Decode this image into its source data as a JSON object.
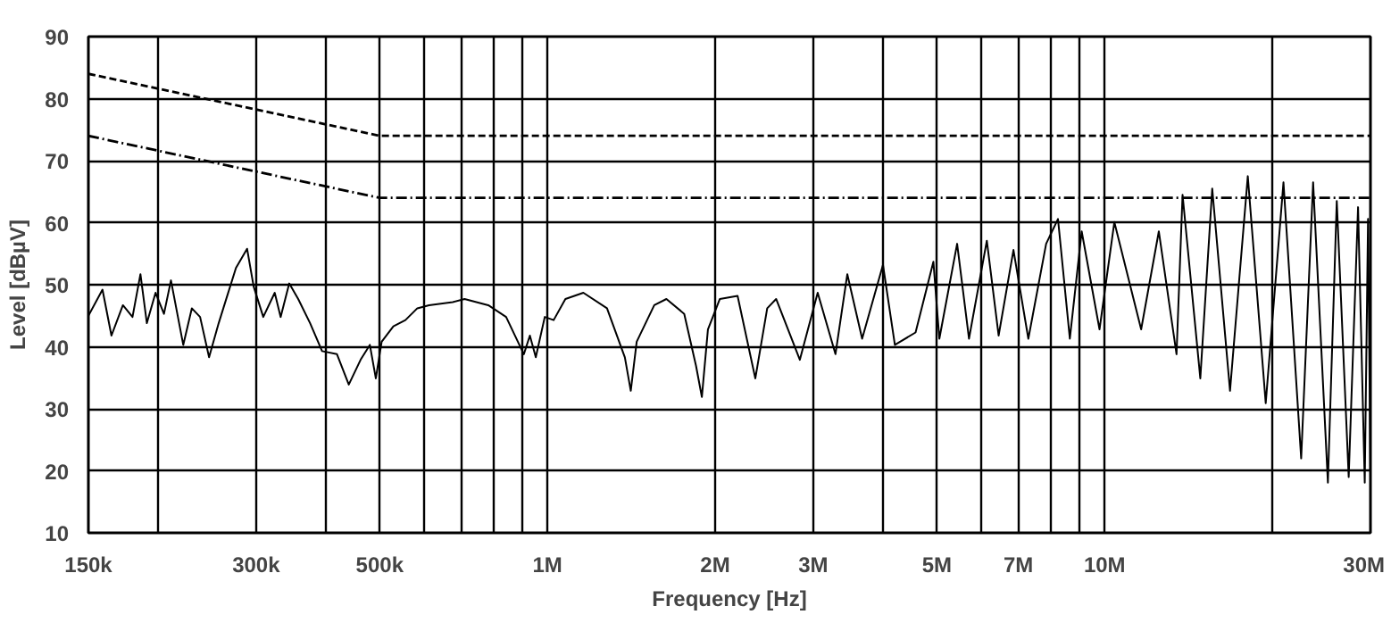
{
  "chart_data": {
    "type": "line",
    "xlabel": "Frequency [Hz]",
    "ylabel": "Level [dBµV]",
    "log": "x",
    "grid": true,
    "xlim": [
      150000,
      30000000
    ],
    "ylim": [
      10,
      90
    ],
    "yticks": [
      10,
      20,
      30,
      40,
      50,
      60,
      70,
      80,
      90
    ],
    "xticks": [
      {
        "value": 150000,
        "label": "150k"
      },
      {
        "value": 200000,
        "label": null
      },
      {
        "value": 300000,
        "label": "300k"
      },
      {
        "value": 400000,
        "label": null
      },
      {
        "value": 500000,
        "label": "500k"
      },
      {
        "value": 600000,
        "label": null
      },
      {
        "value": 700000,
        "label": null
      },
      {
        "value": 800000,
        "label": null
      },
      {
        "value": 900000,
        "label": null
      },
      {
        "value": 1000000,
        "label": "1M"
      },
      {
        "value": 2000000,
        "label": "2M"
      },
      {
        "value": 3000000,
        "label": "3M"
      },
      {
        "value": 4000000,
        "label": null
      },
      {
        "value": 5000000,
        "label": "5M"
      },
      {
        "value": 6000000,
        "label": null
      },
      {
        "value": 7000000,
        "label": "7M"
      },
      {
        "value": 8000000,
        "label": null
      },
      {
        "value": 9000000,
        "label": null
      },
      {
        "value": 10000000,
        "label": "10M"
      },
      {
        "value": 20000000,
        "label": null
      },
      {
        "value": 30000000,
        "label": "30M"
      }
    ],
    "series": [
      {
        "color": "#000000",
        "line_style": "dashed",
        "x": [
          150000,
          500000,
          30000000
        ],
        "values": [
          84,
          74,
          74
        ]
      },
      {
        "color": "#000000",
        "line_style": "dotted",
        "x": [
          150000,
          500000,
          30000000
        ],
        "values": [
          74,
          64,
          64
        ]
      },
      {
        "color": "#000000",
        "line_style": "solid",
        "x": [
          150000,
          159000,
          165000,
          173000,
          180000,
          186000,
          191000,
          198000,
          205000,
          211000,
          222000,
          230000,
          238000,
          247000,
          257000,
          276000,
          289000,
          297000,
          309000,
          324000,
          332000,
          344000,
          357000,
          375000,
          394000,
          419000,
          440000,
          462000,
          480000,
          492000,
          504000,
          529000,
          556000,
          584000,
          613000,
          676000,
          710000,
          783000,
          843000,
          907000,
          930000,
          953000,
          989000,
          1026000,
          1077000,
          1160000,
          1279000,
          1377000,
          1411000,
          1446000,
          1555000,
          1635000,
          1760000,
          1848000,
          1893000,
          1941000,
          2039000,
          2194000,
          2361000,
          2480000,
          2573000,
          2838000,
          3055000,
          3288000,
          3453000,
          3671000,
          4001000,
          4203000,
          4578000,
          4928000,
          5051000,
          5436000,
          5709000,
          6146000,
          6453000,
          6861000,
          7296000,
          7853000,
          8247000,
          8661000,
          9096000,
          9791000,
          10410000,
          11630000,
          12510000,
          13460000,
          13800000,
          14850000,
          15600000,
          16790000,
          18070000,
          19460000,
          20940000,
          22530000,
          23670000,
          25160000,
          26100000,
          27420000,
          28500000,
          29300000,
          29700000,
          30000000
        ],
        "values": [
          45,
          49.2,
          41.8,
          46.7,
          44.8,
          51.7,
          43.8,
          48.7,
          45.3,
          50.7,
          40.3,
          46.2,
          44.8,
          38.3,
          43.8,
          52.7,
          55.8,
          49.7,
          44.8,
          48.7,
          44.8,
          50.2,
          47.7,
          43.8,
          39.3,
          38.8,
          33.9,
          37.9,
          40.3,
          34.9,
          40.8,
          43.3,
          44.3,
          46.2,
          46.7,
          47.2,
          47.7,
          46.7,
          44.8,
          38.8,
          41.8,
          38.3,
          44.8,
          44.3,
          47.7,
          48.7,
          46.2,
          38.3,
          32.9,
          40.8,
          46.7,
          47.7,
          45.3,
          36.9,
          31.9,
          42.8,
          47.7,
          48.2,
          34.9,
          46.2,
          47.7,
          37.9,
          48.7,
          38.8,
          51.7,
          41.3,
          53.2,
          40.3,
          42.3,
          53.7,
          41.3,
          56.6,
          41.3,
          57.1,
          41.8,
          55.6,
          41.3,
          56.6,
          60.6,
          41.3,
          58.6,
          42.8,
          60.1,
          42.8,
          58.6,
          38.8,
          64.5,
          34.9,
          65.5,
          32.9,
          67.5,
          30.9,
          66.5,
          22,
          66.5,
          18.1,
          63.5,
          19,
          62.5,
          18.1,
          60.6,
          19
        ]
      }
    ]
  }
}
